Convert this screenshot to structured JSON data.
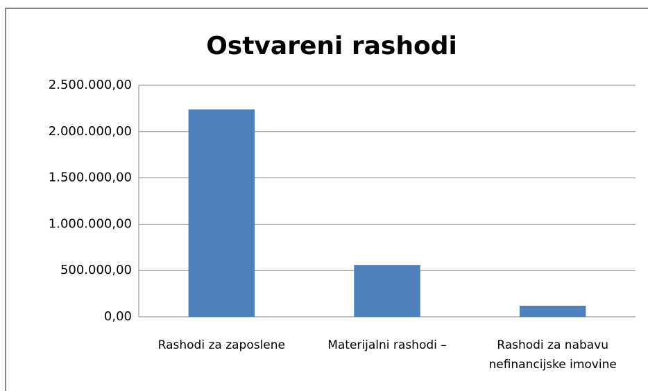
{
  "chart_data": {
    "type": "bar",
    "title": "Ostvareni rashodi",
    "categories": [
      "Rashodi za zaposlene",
      "Materijalni rashodi –",
      "Rashodi za nabavu nefinancijske imovine"
    ],
    "values": [
      2240000,
      560000,
      120000
    ],
    "color": "#4f81bd",
    "ylim": [
      0,
      2500000
    ],
    "yticks": [
      {
        "value": 0,
        "label": "0,00"
      },
      {
        "value": 500000,
        "label": "500.000,00"
      },
      {
        "value": 1000000,
        "label": "1.000.000,00"
      },
      {
        "value": 1500000,
        "label": "1.500.000,00"
      },
      {
        "value": 2000000,
        "label": "2.000.000,00"
      },
      {
        "value": 2500000,
        "label": "2.500.000,00"
      }
    ],
    "grid": true
  }
}
